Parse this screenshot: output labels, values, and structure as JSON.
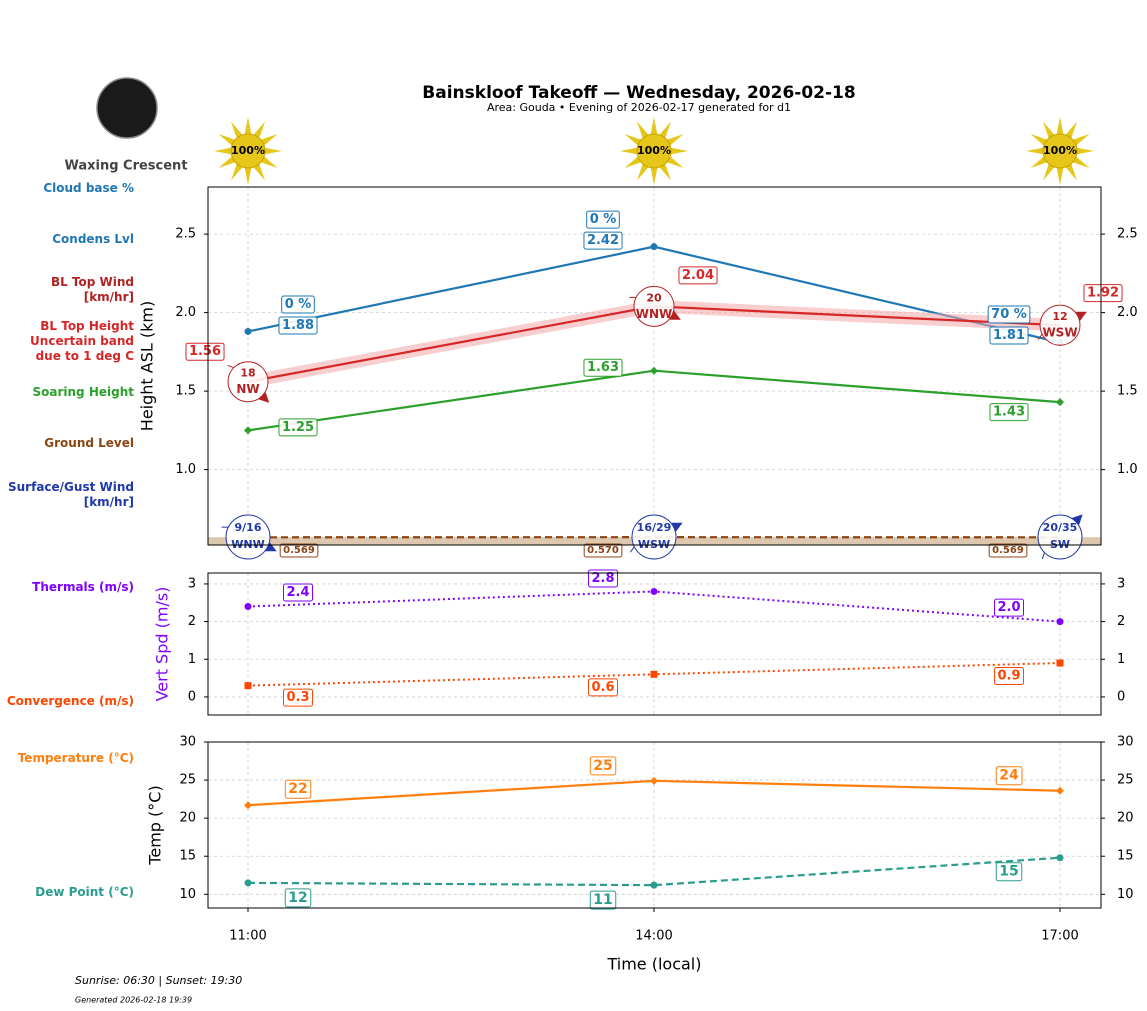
{
  "moon_phase": "Waxing Crescent",
  "footer": {
    "sun": "Sunrise: 06:30 | Sunset: 19:30",
    "generated": "Generated 2026-02-18 19:39"
  },
  "chart_data": [
    {
      "type": "line",
      "title": "Bainskloof Takeoff — Wednesday, 2026-02-18",
      "subtitle": "Area: Gouda • Evening of 2026-02-17 generated for d1",
      "ylabel": "Height ASL (km)",
      "ylim": [
        0.52,
        2.8
      ],
      "yticks": [
        {
          "value": 1,
          "label": "1.0"
        },
        1.5,
        {
          "value": 2,
          "label": "2.0"
        },
        2.5
      ],
      "grid": true,
      "sunshine": {
        "values": [
          100,
          100,
          100
        ],
        "value_labels": [
          "100%",
          "100%",
          "100%"
        ],
        "color": "#e6c619"
      },
      "cloud_base": {
        "name": "Cloud base %",
        "color": "#1f77b4",
        "values": [
          0,
          0,
          70
        ],
        "value_labels": [
          "0 %",
          "0 %",
          "70 %"
        ]
      },
      "series": [
        {
          "name": "Condens Lvl",
          "color": "#1f77b4",
          "linestyle": "solid",
          "marker": "circle",
          "values": [
            1.88,
            2.42,
            1.81
          ]
        },
        {
          "name": "BL Top Height Uncertain band due to 1 deg C",
          "color": "#d62728",
          "linestyle": "solid",
          "marker": "none",
          "values": [
            1.56,
            2.04,
            1.92
          ],
          "band_low": [
            1.52,
            2.0,
            1.88
          ],
          "band_high": [
            1.6,
            2.08,
            1.96
          ],
          "band_color": "#f4a6a6"
        },
        {
          "name": "Soaring Height",
          "color": "#2ca02c",
          "linestyle": "solid",
          "marker": "diamond",
          "values": [
            1.25,
            1.63,
            1.43
          ]
        },
        {
          "name": "Ground Level",
          "color": "#8b4513",
          "linestyle": "dashed",
          "marker": "none",
          "values": [
            0.569,
            0.57,
            0.569
          ],
          "value_labels": [
            "0.569",
            "0.570",
            "0.569"
          ],
          "fill": "#c8a27a"
        }
      ],
      "bl_top_wind": {
        "name": "BL Top Wind [km/hr]",
        "color": "#b22222",
        "speeds": [
          18,
          20,
          12
        ],
        "directions": [
          "NW",
          "WNW",
          "WSW"
        ]
      },
      "surface_wind": {
        "name": "Surface/Gust Wind [km/hr]",
        "color": "#2038a8",
        "speeds": [
          9,
          16,
          20
        ],
        "gusts": [
          16,
          29,
          35
        ],
        "value_labels": [
          "9/16",
          "16/29",
          "20/35"
        ],
        "directions": [
          "WNW",
          "WSW",
          "SW"
        ]
      }
    },
    {
      "type": "line",
      "ylabel": "Vert Spd (m/s)",
      "ylabel_color": "#7f00ff",
      "ylim": [
        -0.48,
        3.29
      ],
      "yticks": [
        0,
        1,
        2,
        3
      ],
      "grid": true,
      "series": [
        {
          "name": "Thermals (m/s)",
          "color": "#7f00ff",
          "linestyle": "dotted",
          "marker": "circle",
          "values": [
            2.4,
            2.8,
            2.0
          ],
          "value_labels": [
            "2.4",
            "2.8",
            "2.0"
          ]
        },
        {
          "name": "Convergence (m/s)",
          "color": "#ff4500",
          "linestyle": "dotted",
          "marker": "square",
          "values": [
            0.3,
            0.6,
            0.9
          ]
        }
      ]
    },
    {
      "type": "line",
      "ylabel": "Temp (°C)",
      "xlabel": "Time (local)",
      "categories": [
        "11:00",
        "14:00",
        "17:00"
      ],
      "ylim": [
        8.2,
        30
      ],
      "yticks": [
        10,
        15,
        20,
        25,
        30
      ],
      "grid": true,
      "series": [
        {
          "name": "Temperature (°C)",
          "color": "#ff7f0e",
          "linestyle": "solid",
          "marker": "diamond",
          "values": [
            21.7,
            24.9,
            23.6
          ],
          "value_labels": [
            "22",
            "25",
            "24"
          ]
        },
        {
          "name": "Dew Point (°C)",
          "color": "#2a9d8f",
          "linestyle": "dashed",
          "marker": "circle",
          "values": [
            11.5,
            11.2,
            14.8
          ],
          "value_labels": [
            "12",
            "11",
            "15"
          ]
        }
      ]
    }
  ]
}
